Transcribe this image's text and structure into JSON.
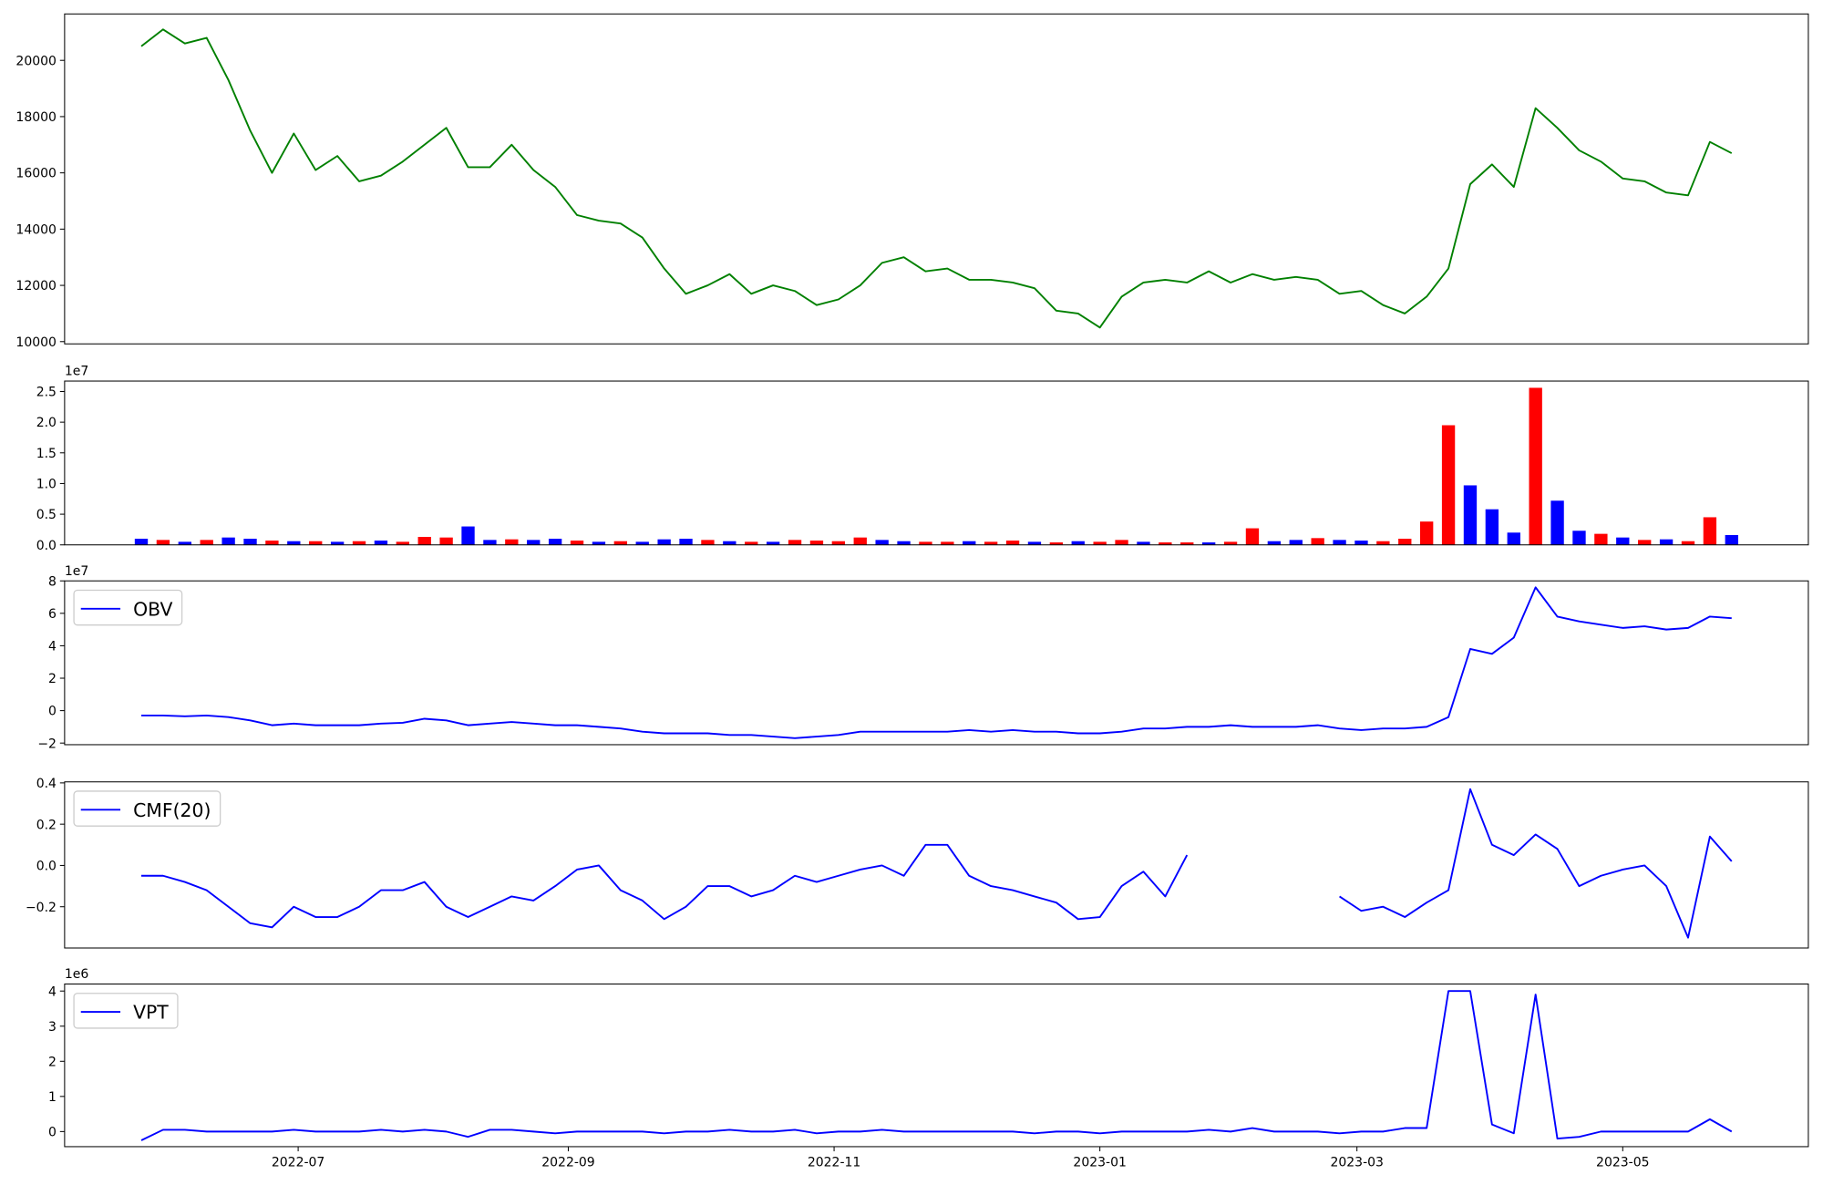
{
  "chart_data": [
    {
      "type": "line",
      "x": [
        19138,
        19143,
        19148,
        19153,
        19158,
        19163,
        19168,
        19173,
        19178,
        19183,
        19188,
        19193,
        19198,
        19203,
        19208,
        19213,
        19218,
        19223,
        19228,
        19233,
        19238,
        19243,
        19248,
        19253,
        19258,
        19263,
        19268,
        19273,
        19278,
        19283,
        19288,
        19293,
        19298,
        19303,
        19308,
        19313,
        19318,
        19323,
        19328,
        19333,
        19338,
        19343,
        19348,
        19353,
        19358,
        19363,
        19368,
        19373,
        19378,
        19383,
        19388,
        19393,
        19398,
        19403,
        19408,
        19413,
        19418,
        19423,
        19428,
        19433,
        19438,
        19443,
        19448,
        19453,
        19458,
        19463,
        19468,
        19473,
        19478,
        19483,
        19488,
        19493,
        19498,
        19503
      ],
      "series": [
        {
          "color": "green",
          "values": [
            20500,
            21100,
            20600,
            20800,
            19300,
            17500,
            16000,
            17400,
            16100,
            16600,
            15700,
            15900,
            16400,
            17000,
            17600,
            16200,
            16200,
            17000,
            16100,
            15500,
            14500,
            14300,
            14200,
            13700,
            12600,
            11700,
            12000,
            12400,
            11700,
            12000,
            11800,
            11300,
            11500,
            12000,
            12800,
            13000,
            12500,
            12600,
            12200,
            12200,
            12100,
            11900,
            11100,
            11000,
            10500,
            11600,
            12100,
            12200,
            12100,
            12500,
            12100,
            12400,
            12200,
            12300,
            12200,
            11700,
            11800,
            11300,
            11000,
            11600,
            12600,
            15600,
            16300,
            15500,
            18300,
            17600,
            16800,
            16400,
            15800,
            15700,
            15300,
            15200,
            17100,
            16700
          ]
        }
      ],
      "xlim": [
        19120.4,
        19520.6
      ],
      "ylim": [
        9920,
        21650
      ],
      "yticks": [
        10000,
        12000,
        14000,
        16000,
        18000,
        20000
      ]
    },
    {
      "type": "bar",
      "x": [
        19138,
        19143,
        19148,
        19153,
        19158,
        19163,
        19168,
        19173,
        19178,
        19183,
        19188,
        19193,
        19198,
        19203,
        19208,
        19213,
        19218,
        19223,
        19228,
        19233,
        19238,
        19243,
        19248,
        19253,
        19258,
        19263,
        19268,
        19273,
        19278,
        19283,
        19288,
        19293,
        19298,
        19303,
        19308,
        19313,
        19318,
        19323,
        19328,
        19333,
        19338,
        19343,
        19348,
        19353,
        19358,
        19363,
        19368,
        19373,
        19378,
        19383,
        19388,
        19393,
        19398,
        19403,
        19408,
        19413,
        19418,
        19423,
        19428,
        19433,
        19438,
        19443,
        19448,
        19453,
        19458,
        19463,
        19468,
        19473,
        19478,
        19483,
        19488,
        19493,
        19498,
        19503
      ],
      "values": [
        1000000,
        800000,
        500000,
        800000,
        1200000,
        1000000,
        700000,
        600000,
        600000,
        500000,
        600000,
        700000,
        500000,
        1300000,
        1200000,
        3000000,
        800000,
        900000,
        800000,
        1000000,
        700000,
        500000,
        600000,
        500000,
        900000,
        1000000,
        800000,
        600000,
        500000,
        500000,
        800000,
        700000,
        600000,
        1200000,
        800000,
        600000,
        500000,
        500000,
        600000,
        500000,
        700000,
        500000,
        400000,
        600000,
        500000,
        800000,
        500000,
        400000,
        400000,
        400000,
        500000,
        2700000,
        600000,
        800000,
        1100000,
        800000,
        700000,
        600000,
        1000000,
        3800000,
        19500000,
        9700000,
        5800000,
        2000000,
        25600000,
        7200000,
        2300000,
        1800000,
        1200000,
        800000,
        900000,
        600000,
        4500000,
        1600000
      ],
      "colors": [
        "blue",
        "red",
        "blue",
        "red",
        "blue",
        "blue",
        "red",
        "blue",
        "red",
        "blue",
        "red",
        "blue",
        "red",
        "red",
        "red",
        "blue",
        "blue",
        "red",
        "blue",
        "blue",
        "red",
        "blue",
        "red",
        "blue",
        "blue",
        "blue",
        "red",
        "blue",
        "red",
        "blue",
        "red",
        "red",
        "red",
        "red",
        "blue",
        "blue",
        "red",
        "red",
        "blue",
        "red",
        "red",
        "blue",
        "red",
        "blue",
        "red",
        "red",
        "blue",
        "red",
        "red",
        "blue",
        "red",
        "red",
        "blue",
        "blue",
        "red",
        "blue",
        "blue",
        "red",
        "red",
        "red",
        "red",
        "blue",
        "blue",
        "blue",
        "red",
        "blue",
        "blue",
        "red",
        "blue",
        "red",
        "blue",
        "red",
        "red",
        "blue"
      ],
      "offset_label": "1e7",
      "xlim": [
        19120.4,
        19520.6
      ],
      "ylim": [
        0,
        26700000
      ],
      "yticks": [
        {
          "value": 0,
          "label": "0.0"
        },
        {
          "value": 5000000,
          "label": "0.5"
        },
        {
          "value": 10000000,
          "label": "1.0"
        },
        {
          "value": 15000000,
          "label": "1.5"
        },
        {
          "value": 20000000,
          "label": "2.0"
        },
        {
          "value": 25000000,
          "label": "2.5"
        }
      ]
    },
    {
      "type": "line",
      "x": [
        19138,
        19143,
        19148,
        19153,
        19158,
        19163,
        19168,
        19173,
        19178,
        19183,
        19188,
        19193,
        19198,
        19203,
        19208,
        19213,
        19218,
        19223,
        19228,
        19233,
        19238,
        19243,
        19248,
        19253,
        19258,
        19263,
        19268,
        19273,
        19278,
        19283,
        19288,
        19293,
        19298,
        19303,
        19308,
        19313,
        19318,
        19323,
        19328,
        19333,
        19338,
        19343,
        19348,
        19353,
        19358,
        19363,
        19368,
        19373,
        19378,
        19383,
        19388,
        19393,
        19398,
        19403,
        19408,
        19413,
        19418,
        19423,
        19428,
        19433,
        19438,
        19443,
        19448,
        19453,
        19458,
        19463,
        19468,
        19473,
        19478,
        19483,
        19488,
        19493,
        19498,
        19503
      ],
      "series": [
        {
          "name": "OBV",
          "color": "blue",
          "values": [
            -3000000,
            -3000000,
            -3500000,
            -3000000,
            -4000000,
            -6000000,
            -9000000,
            -8000000,
            -9000000,
            -9000000,
            -9000000,
            -8000000,
            -7500000,
            -5000000,
            -6000000,
            -9000000,
            -8000000,
            -7000000,
            -8000000,
            -9000000,
            -9000000,
            -10000000,
            -11000000,
            -13000000,
            -14000000,
            -14000000,
            -14000000,
            -15000000,
            -15000000,
            -16000000,
            -17000000,
            -16000000,
            -15000000,
            -13000000,
            -13000000,
            -13000000,
            -13000000,
            -13000000,
            -12000000,
            -13000000,
            -12000000,
            -13000000,
            -13000000,
            -14000000,
            -14000000,
            -13000000,
            -11000000,
            -11000000,
            -10000000,
            -10000000,
            -9000000,
            -10000000,
            -10000000,
            -10000000,
            -9000000,
            -11000000,
            -12000000,
            -11000000,
            -11000000,
            -10000000,
            -4000000,
            38000000,
            35000000,
            45000000,
            76000000,
            58000000,
            55000000,
            53000000,
            51000000,
            52000000,
            50000000,
            51000000,
            58000000,
            57000000
          ]
        }
      ],
      "legend": "upper left",
      "offset_label": "1e7",
      "xlim": [
        19120.4,
        19520.6
      ],
      "ylim": [
        -21000000,
        80000000
      ],
      "yticks": [
        {
          "value": -20000000,
          "label": "−2"
        },
        {
          "value": 0,
          "label": "0"
        },
        {
          "value": 20000000,
          "label": "2"
        },
        {
          "value": 40000000,
          "label": "4"
        },
        {
          "value": 60000000,
          "label": "6"
        },
        {
          "value": 80000000,
          "label": "8"
        }
      ]
    },
    {
      "type": "line",
      "x": [
        19138,
        19143,
        19148,
        19153,
        19158,
        19163,
        19168,
        19173,
        19178,
        19183,
        19188,
        19193,
        19198,
        19203,
        19208,
        19213,
        19218,
        19223,
        19228,
        19233,
        19238,
        19243,
        19248,
        19253,
        19258,
        19263,
        19268,
        19273,
        19278,
        19283,
        19288,
        19293,
        19298,
        19303,
        19308,
        19313,
        19318,
        19323,
        19328,
        19333,
        19338,
        19343,
        19348,
        19353,
        19358,
        19363,
        19368,
        19373,
        19378,
        19383,
        19388,
        19393,
        19398,
        19403,
        19408,
        19413,
        19418,
        19423,
        19428,
        19433,
        19438,
        19443,
        19448,
        19453,
        19458,
        19463,
        19468,
        19473,
        19478,
        19483,
        19488,
        19493,
        19498,
        19503
      ],
      "series": [
        {
          "name": "CMF(20)",
          "color": "blue",
          "values": [
            -0.05,
            -0.05,
            -0.08,
            -0.12,
            -0.2,
            -0.28,
            -0.3,
            -0.2,
            -0.25,
            -0.25,
            -0.2,
            -0.12,
            -0.12,
            -0.08,
            -0.2,
            -0.25,
            -0.2,
            -0.15,
            -0.17,
            -0.1,
            -0.02,
            0.0,
            -0.12,
            -0.17,
            -0.26,
            -0.2,
            -0.1,
            -0.1,
            -0.15,
            -0.12,
            -0.05,
            -0.08,
            -0.05,
            -0.02,
            0.0,
            -0.05,
            0.1,
            0.1,
            -0.05,
            -0.1,
            -0.12,
            -0.15,
            -0.18,
            -0.26,
            -0.25,
            -0.1,
            -0.03,
            -0.15,
            0.05,
            null,
            null,
            null,
            null,
            null,
            null,
            -0.15,
            -0.22,
            -0.2,
            -0.25,
            -0.18,
            -0.12,
            0.37,
            0.1,
            0.05,
            0.15,
            0.08,
            -0.1,
            -0.05,
            -0.02,
            0.0,
            -0.1,
            -0.35,
            0.14,
            0.02
          ]
        }
      ],
      "legend": "upper left",
      "xlim": [
        19120.4,
        19520.6
      ],
      "ylim": [
        -0.4,
        0.405
      ],
      "yticks": [
        {
          "value": -0.2,
          "label": "−0.2"
        },
        {
          "value": 0,
          "label": "0.0"
        },
        0.2,
        0.4
      ]
    },
    {
      "type": "line",
      "x": [
        19138,
        19143,
        19148,
        19153,
        19158,
        19163,
        19168,
        19173,
        19178,
        19183,
        19188,
        19193,
        19198,
        19203,
        19208,
        19213,
        19218,
        19223,
        19228,
        19233,
        19238,
        19243,
        19248,
        19253,
        19258,
        19263,
        19268,
        19273,
        19278,
        19283,
        19288,
        19293,
        19298,
        19303,
        19308,
        19313,
        19318,
        19323,
        19328,
        19333,
        19338,
        19343,
        19348,
        19353,
        19358,
        19363,
        19368,
        19373,
        19378,
        19383,
        19388,
        19393,
        19398,
        19403,
        19408,
        19413,
        19418,
        19423,
        19428,
        19433,
        19438,
        19443,
        19448,
        19453,
        19458,
        19463,
        19468,
        19473,
        19478,
        19483,
        19488,
        19493,
        19498,
        19503
      ],
      "series": [
        {
          "name": "VPT",
          "color": "blue",
          "values": [
            -250000,
            50000,
            50000,
            0,
            0,
            0,
            0,
            50000,
            0,
            0,
            0,
            50000,
            0,
            50000,
            0,
            -150000,
            50000,
            50000,
            0,
            -50000,
            0,
            0,
            0,
            0,
            -50000,
            0,
            0,
            50000,
            0,
            0,
            50000,
            -50000,
            0,
            0,
            50000,
            0,
            0,
            0,
            0,
            0,
            0,
            -50000,
            0,
            0,
            -50000,
            0,
            0,
            0,
            0,
            50000,
            0,
            100000,
            0,
            0,
            0,
            -50000,
            0,
            0,
            100000,
            100000,
            4000000,
            4000000,
            200000,
            -50000,
            3900000,
            -200000,
            -150000,
            0,
            0,
            0,
            0,
            0,
            350000,
            0
          ]
        }
      ],
      "legend": "upper left",
      "offset_label": "1e6",
      "xlim": [
        19120.4,
        19520.6
      ],
      "ylim": [
        -430000,
        4200000
      ],
      "yticks": [
        0,
        {
          "value": 1000000,
          "label": "1"
        },
        {
          "value": 2000000,
          "label": "2"
        },
        {
          "value": 3000000,
          "label": "3"
        },
        {
          "value": 4000000,
          "label": "4"
        }
      ],
      "xticks": [
        {
          "value": 19174,
          "label": "2022-07"
        },
        {
          "value": 19236,
          "label": "2022-09"
        },
        {
          "value": 19297,
          "label": "2022-11"
        },
        {
          "value": 19358,
          "label": "2023-01"
        },
        {
          "value": 19417,
          "label": "2023-03"
        },
        {
          "value": 19478,
          "label": "2023-05"
        }
      ]
    }
  ]
}
